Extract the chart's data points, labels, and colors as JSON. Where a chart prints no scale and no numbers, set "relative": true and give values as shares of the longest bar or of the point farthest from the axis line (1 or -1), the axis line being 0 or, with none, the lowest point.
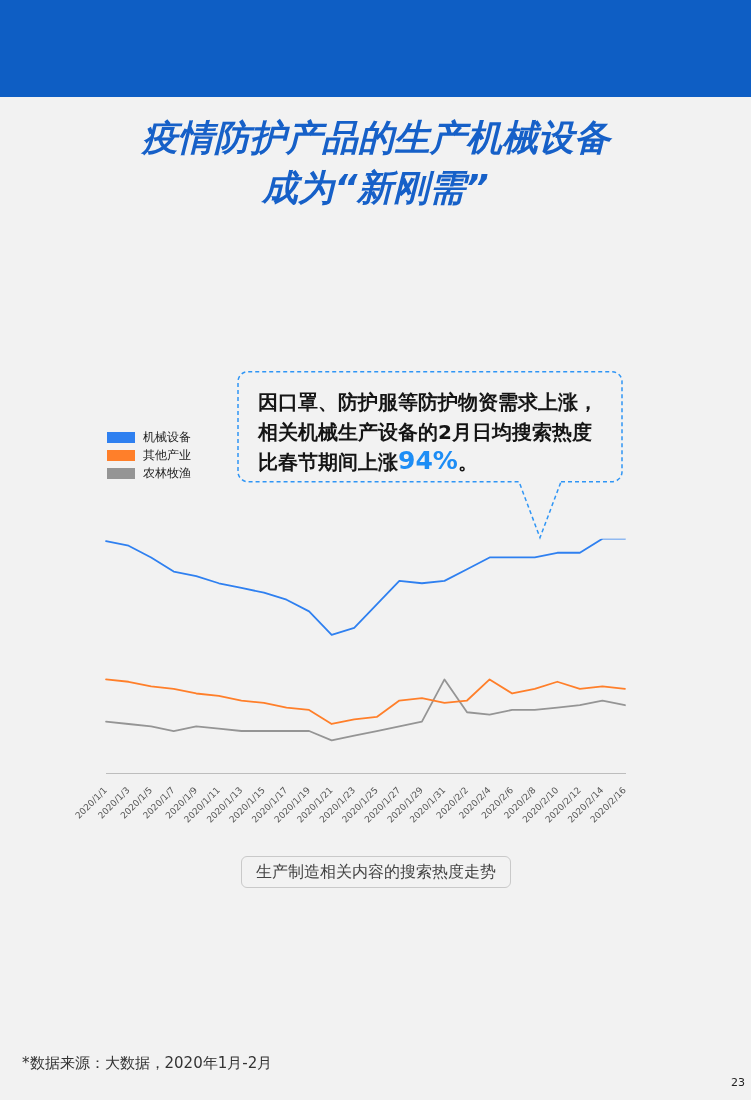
{
  "chart_data": {
    "type": "line",
    "title": "疫情防护产品的生产机械设备成为“新刚需”",
    "categories": [
      "2020/1/1",
      "2020/1/3",
      "2020/1/5",
      "2020/1/7",
      "2020/1/9",
      "2020/1/11",
      "2020/1/13",
      "2020/1/15",
      "2020/1/17",
      "2020/1/19",
      "2020/1/21",
      "2020/1/23",
      "2020/1/25",
      "2020/1/27",
      "2020/1/29",
      "2020/1/31",
      "2020/2/2",
      "2020/2/4",
      "2020/2/6",
      "2020/2/8",
      "2020/2/10",
      "2020/2/12",
      "2020/2/14",
      "2020/2/16"
    ],
    "series": [
      {
        "name": "机械设备",
        "color": "#2f80f0",
        "values": [
          0.99,
          0.97,
          0.92,
          0.86,
          0.84,
          0.81,
          0.79,
          0.77,
          0.74,
          0.69,
          0.59,
          0.62,
          0.72,
          0.82,
          0.81,
          0.82,
          0.87,
          0.92,
          0.92,
          0.92,
          0.94,
          0.94,
          1,
          1
        ]
      },
      {
        "name": "其他产业",
        "color": "#ff7f2a",
        "values": [
          0.4,
          0.39,
          0.37,
          0.36,
          0.34,
          0.33,
          0.31,
          0.3,
          0.28,
          0.27,
          0.21,
          0.23,
          0.24,
          0.31,
          0.32,
          0.3,
          0.31,
          0.4,
          0.34,
          0.36,
          0.39,
          0.36,
          0.37,
          0.36
        ]
      },
      {
        "name": "农林牧渔",
        "color": "#959595",
        "values": [
          0.22,
          0.21,
          0.2,
          0.18,
          0.2,
          0.19,
          0.18,
          0.18,
          0.18,
          0.18,
          0.14,
          0.16,
          0.18,
          0.2,
          0.22,
          0.4,
          0.26,
          0.25,
          0.27,
          0.27,
          0.28,
          0.29,
          0.31,
          0.29
        ]
      }
    ],
    "relative": true,
    "legend": "top left",
    "marker": "none",
    "annotations": [
      "因口罩、防护服等防护物资需求上涨，相关机械生产设备的2月日均搜索热度比春节期间上涨94%。",
      "生产制造相关内容的搜索热度走势",
      "*数据来源：大数据，2020年1月-2月",
      "23"
    ]
  }
}
